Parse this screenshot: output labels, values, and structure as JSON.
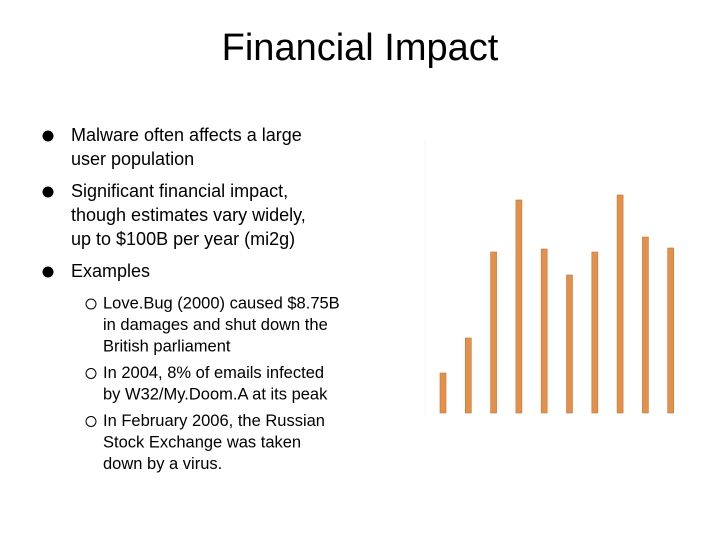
{
  "title": "Financial Impact",
  "bullets": [
    {
      "lines": [
        "Malware often affects a large",
        "user population"
      ]
    },
    {
      "lines": [
        "Significant financial impact,",
        "though estimates vary widely,",
        "up to $100B per year (mi2g)"
      ]
    },
    {
      "lines": [
        "Examples"
      ],
      "sub": [
        {
          "lines": [
            "Love.Bug (2000) caused $8.75B",
            "in damages and shut down the",
            "British parliament"
          ]
        },
        {
          "lines": [
            "In 2004, 8% of emails infected",
            "by W32/My.Doom.A at its peak"
          ]
        },
        {
          "lines": [
            "In February 2006, the Russian",
            "Stock Exchange was taken",
            "down by a virus."
          ]
        }
      ]
    }
  ],
  "chart_data": {
    "type": "bar",
    "categories": [
      null,
      null,
      null,
      null,
      null,
      null,
      null,
      null,
      null,
      null
    ],
    "values": [
      40,
      75,
      161,
      213,
      164,
      138,
      161,
      218,
      176,
      165
    ],
    "color": "#e3904c",
    "ylim": [
      0,
      250
    ]
  }
}
